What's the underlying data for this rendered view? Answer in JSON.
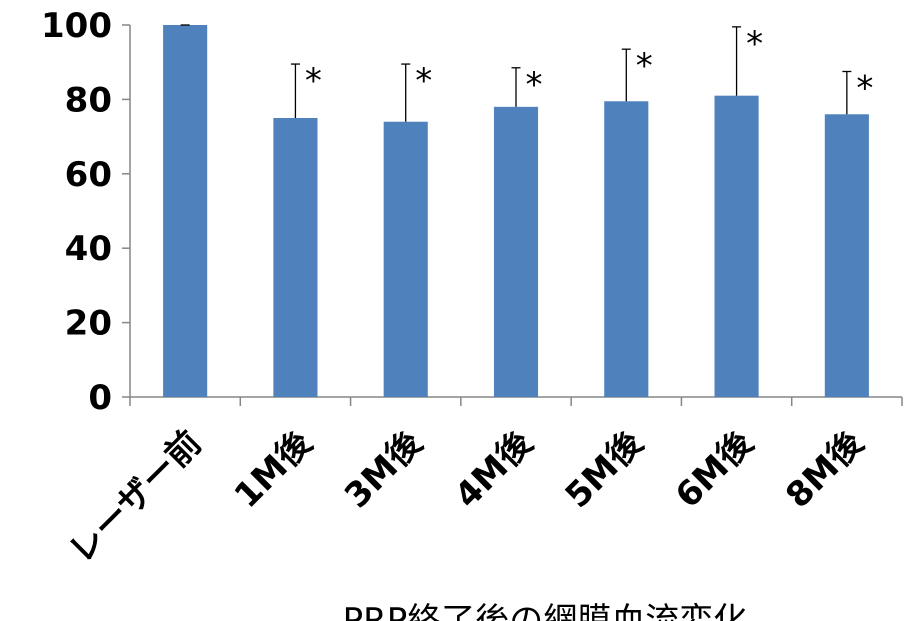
{
  "chart_data": {
    "type": "bar",
    "title": "",
    "xlabel": "PRP終了後の網膜血流変化",
    "ylabel": "",
    "ylim": [
      0,
      100
    ],
    "y_ticks": [
      "0",
      "20",
      "40",
      "60",
      "80",
      "100"
    ],
    "categories": [
      "レーザー前",
      "1M後",
      "3M後",
      "4M後",
      "5M後",
      "6M後",
      "8M後"
    ],
    "values": [
      100,
      75,
      74,
      78,
      79.5,
      81,
      76
    ],
    "error_upper": [
      0,
      14.5,
      15.5,
      10.5,
      14,
      18.5,
      11.5
    ],
    "significance": [
      "",
      "*",
      "*",
      "*",
      "*",
      "*",
      "*"
    ],
    "bar_color": "#4f81bd",
    "grid": false,
    "legend": "none"
  }
}
